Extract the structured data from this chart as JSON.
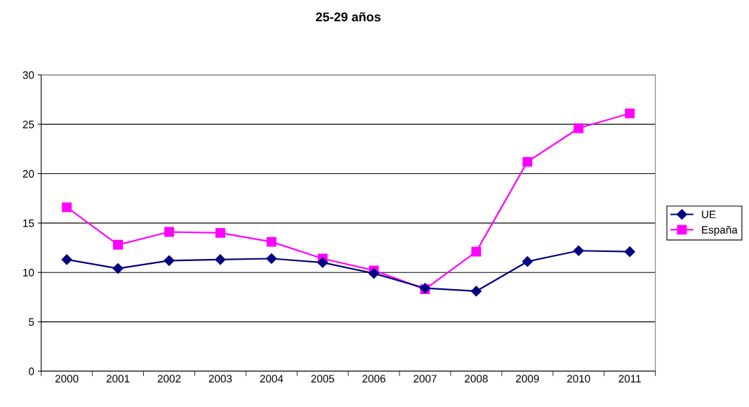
{
  "chart_data": {
    "type": "line",
    "title": "25-29 años",
    "categories": [
      "2000",
      "2001",
      "2002",
      "2003",
      "2004",
      "2005",
      "2006",
      "2007",
      "2008",
      "2009",
      "2010",
      "2011"
    ],
    "series": [
      {
        "name": "UE",
        "color": "#000080",
        "marker": "diamond",
        "values": [
          11.3,
          10.4,
          11.2,
          11.3,
          11.4,
          11.0,
          9.9,
          8.4,
          8.1,
          11.1,
          12.2,
          12.1
        ]
      },
      {
        "name": "España",
        "color": "#ff00ff",
        "marker": "square",
        "values": [
          16.6,
          12.8,
          14.1,
          14.0,
          13.1,
          11.4,
          10.2,
          8.3,
          12.1,
          21.2,
          24.6,
          26.1
        ]
      }
    ],
    "ylim": [
      0,
      30
    ],
    "yticks": [
      0,
      5,
      10,
      15,
      20,
      25,
      30
    ],
    "grid": "y",
    "legend": "right"
  }
}
